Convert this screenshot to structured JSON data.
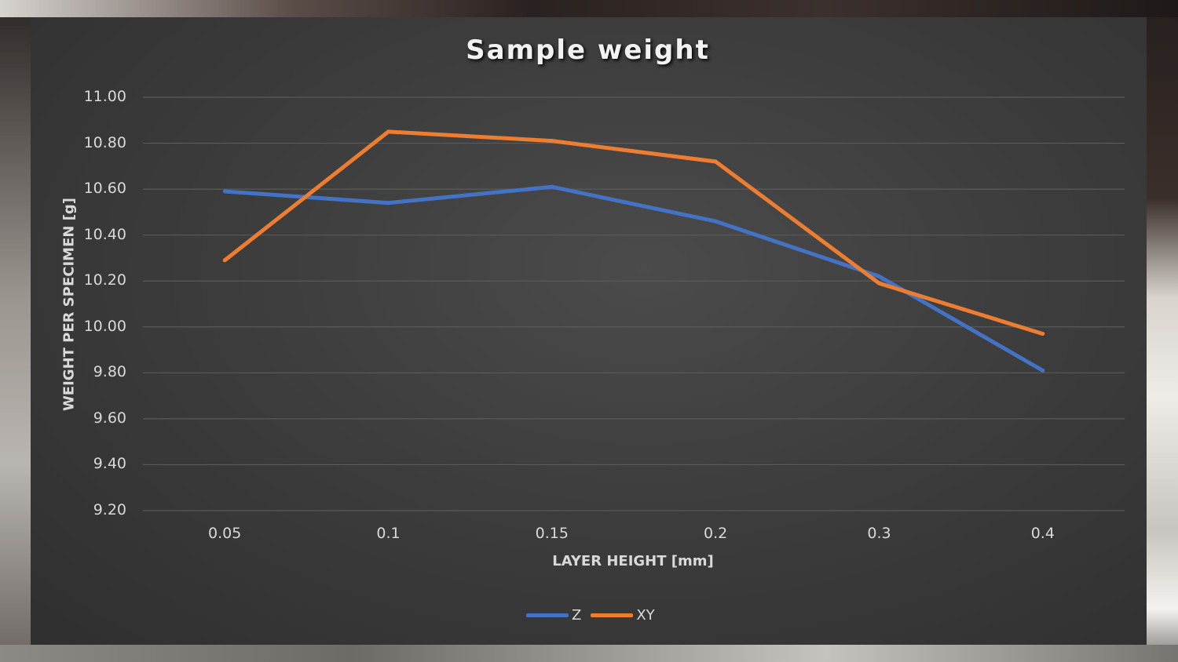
{
  "chart_data": {
    "type": "line",
    "title": "Sample weight",
    "xlabel": "LAYER HEIGHT [mm]",
    "ylabel": "WEIGHT PER SPECIMEN [g]",
    "categories": [
      "0.05",
      "0.1",
      "0.15",
      "0.2",
      "0.3",
      "0.4"
    ],
    "ylim": [
      9.2,
      11.0
    ],
    "yticks": [
      "9.20",
      "9.40",
      "9.60",
      "9.80",
      "10.00",
      "10.20",
      "10.40",
      "10.60",
      "10.80",
      "11.00"
    ],
    "grid": true,
    "legend": "bottom",
    "series": [
      {
        "name": "Z",
        "color": "#4472C4",
        "values": [
          10.59,
          10.54,
          10.61,
          10.46,
          10.22,
          9.81
        ]
      },
      {
        "name": "XY",
        "color": "#ED7D31",
        "values": [
          10.29,
          10.85,
          10.81,
          10.72,
          10.19,
          9.97
        ]
      }
    ]
  }
}
